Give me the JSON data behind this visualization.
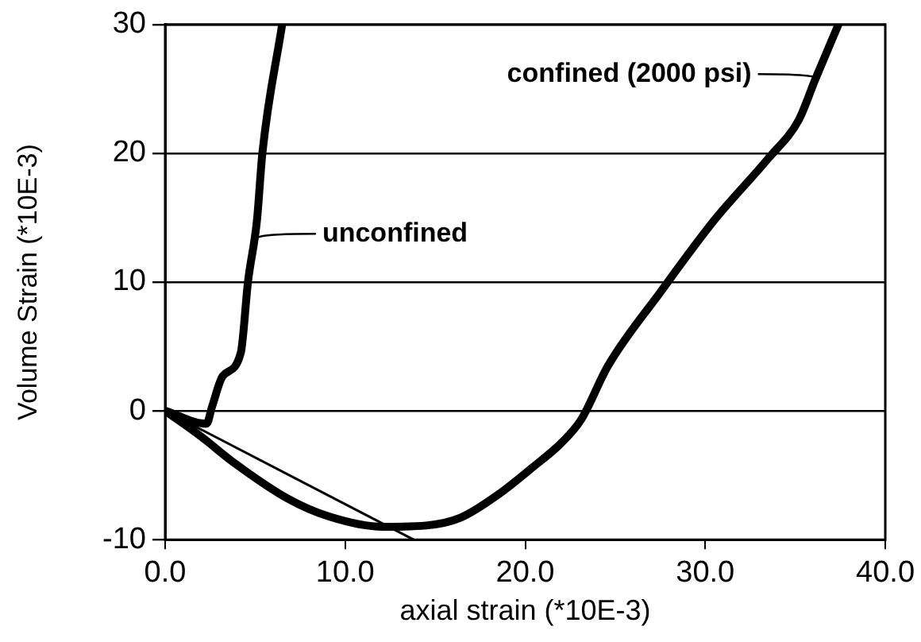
{
  "chart_data": {
    "type": "line",
    "xlabel": "axial strain (*10E-3)",
    "ylabel": "Volume Strain (*10E-3)",
    "xlim": [
      0,
      40
    ],
    "ylim": [
      -10,
      30
    ],
    "xticks": [
      {
        "value": 0,
        "label": "0.0"
      },
      {
        "value": 10,
        "label": "10.0"
      },
      {
        "value": 20,
        "label": "20.0"
      },
      {
        "value": 30,
        "label": "30.0"
      },
      {
        "value": 40,
        "label": "40.0"
      }
    ],
    "yticks": [
      -10,
      0,
      10,
      20,
      30
    ],
    "grid": "y",
    "legend": false,
    "marker": "none",
    "line_style": "solid",
    "series": [
      {
        "color": "#000000",
        "x": [
          0,
          2.3,
          2.6,
          3.2,
          4.2,
          4.6,
          5.1,
          5.4,
          6.5
        ],
        "values": [
          0,
          -1.0,
          0.3,
          2.7,
          4.5,
          10,
          14.8,
          20,
          30
        ]
      },
      {
        "color": "#000000",
        "x": [
          0,
          2,
          3.8,
          6.8,
          9.1,
          12.1,
          14.5,
          16.4,
          18.5,
          20.4,
          22,
          23.1,
          24.6,
          27.5,
          30.5,
          33.5,
          35.2,
          36.1,
          37.4
        ],
        "values": [
          0,
          -2,
          -4.0,
          -6.8,
          -8.2,
          -9.0,
          -8.9,
          -8.3,
          -6.5,
          -4.4,
          -2.5,
          -0.7,
          3.5,
          9.2,
          14.8,
          19.6,
          22.6,
          25.7,
          30
        ]
      },
      {
        "color": "#000000",
        "x": [
          0,
          13.8
        ],
        "values": [
          0,
          -10
        ]
      }
    ],
    "annotations": [
      {
        "text": "unconfined",
        "x": 5.2,
        "y": 13.5
      },
      {
        "text": "confined (2000 psi)",
        "x": 36.1,
        "y": 25.9
      }
    ]
  }
}
